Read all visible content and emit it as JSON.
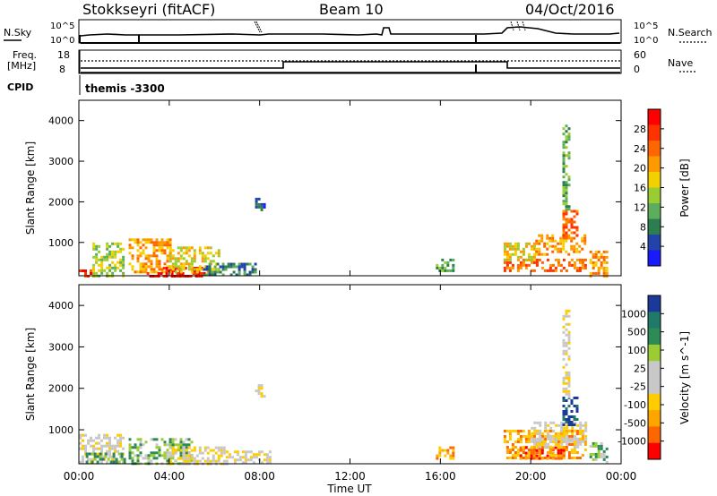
{
  "header": {
    "site": "Stokkseyri (fitACF)",
    "beam": "Beam 10",
    "date": "04/Oct/2016"
  },
  "top_strip": {
    "left_label": "N.Sky",
    "right_label": "N.Search",
    "left_ticks": [
      "10^5",
      "10^0"
    ],
    "right_ticks": [
      "10^5",
      "10^0"
    ]
  },
  "freq_strip": {
    "left_label_1": "Freq.",
    "left_label_2": "[MHz]",
    "left_ticks": [
      "18",
      "8"
    ],
    "right_label": "Nave",
    "right_ticks": [
      "60",
      "0"
    ],
    "cpid_label": "CPID",
    "cpid_text": "themis -3300"
  },
  "colors": {
    "power": [
      "#1a1aff",
      "#2244aa",
      "#2e7d4f",
      "#5cae5c",
      "#9acd32",
      "#f5d000",
      "#ff9900",
      "#ff6600",
      "#ff3300",
      "#ff0000"
    ],
    "velocity": [
      "#ff0000",
      "#ff6600",
      "#ffa500",
      "#ffcc00",
      "#c8c8c8",
      "#c8c8c8",
      "#9acd32",
      "#2e8b57",
      "#1f7a6a",
      "#1a3a9a"
    ]
  },
  "chart_data": [
    {
      "type": "heatmap",
      "name": "power",
      "ylabel": "Slant Range [km]",
      "xlim": [
        0,
        24
      ],
      "ylim": [
        180,
        4500
      ],
      "yticks": [
        "1000",
        "2000",
        "3000",
        "4000"
      ],
      "colorbar": {
        "label": "Power [dB]",
        "ticks": [
          "4",
          "8",
          "12",
          "16",
          "20",
          "24",
          "28"
        ],
        "range": [
          0,
          30
        ]
      },
      "regions": [
        {
          "t0": 0.0,
          "t1": 0.6,
          "r0": 200,
          "r1": 400,
          "level": 8
        },
        {
          "t0": 0.6,
          "t1": 2.0,
          "r0": 200,
          "r1": 1000,
          "level": 4
        },
        {
          "t0": 2.2,
          "t1": 4.0,
          "r0": 250,
          "r1": 1100,
          "level": 6
        },
        {
          "t0": 3.0,
          "t1": 5.5,
          "r0": 200,
          "r1": 400,
          "level": 9
        },
        {
          "t0": 4.0,
          "t1": 6.2,
          "r0": 300,
          "r1": 900,
          "level": 5
        },
        {
          "t0": 5.5,
          "t1": 7.8,
          "r0": 200,
          "r1": 500,
          "level": 2
        },
        {
          "t0": 7.8,
          "t1": 8.2,
          "r0": 1800,
          "r1": 2100,
          "level": 1
        },
        {
          "t0": 15.8,
          "t1": 16.6,
          "r0": 300,
          "r1": 600,
          "level": 3
        },
        {
          "t0": 18.8,
          "t1": 22.4,
          "r0": 300,
          "r1": 600,
          "level": 7
        },
        {
          "t0": 18.8,
          "t1": 20.2,
          "r0": 600,
          "r1": 1000,
          "level": 5
        },
        {
          "t0": 20.2,
          "t1": 22.4,
          "r0": 700,
          "r1": 1200,
          "level": 6
        },
        {
          "t0": 21.4,
          "t1": 22.1,
          "r0": 1100,
          "r1": 1800,
          "level": 7
        },
        {
          "t0": 21.4,
          "t1": 21.7,
          "r0": 1800,
          "r1": 3900,
          "level": 3
        },
        {
          "t0": 22.6,
          "t1": 23.4,
          "r0": 200,
          "r1": 800,
          "level": 6
        }
      ]
    },
    {
      "type": "heatmap",
      "name": "velocity",
      "ylabel": "Slant Range [km]",
      "xlabel": "Time UT",
      "xticks": [
        "00:00",
        "04:00",
        "08:00",
        "12:00",
        "16:00",
        "20:00",
        "00:00"
      ],
      "xlim": [
        0,
        24
      ],
      "ylim": [
        180,
        4500
      ],
      "yticks": [
        "1000",
        "2000",
        "3000",
        "4000"
      ],
      "colorbar": {
        "label": "Velocity [m s^-1]",
        "ticks": [
          "1000",
          "500",
          "100",
          "25",
          "-25",
          "-100",
          "-500",
          "-1000"
        ],
        "range": [
          -1000,
          1000
        ]
      },
      "regions": [
        {
          "t0": 0.0,
          "t1": 2.0,
          "r0": 200,
          "r1": 900,
          "level": 4
        },
        {
          "t0": 0.3,
          "t1": 2.0,
          "r0": 200,
          "r1": 450,
          "level": 7
        },
        {
          "t0": 2.2,
          "t1": 5.0,
          "r0": 200,
          "r1": 800,
          "level": 6
        },
        {
          "t0": 4.0,
          "t1": 6.5,
          "r0": 200,
          "r1": 600,
          "level": 4
        },
        {
          "t0": 6.5,
          "t1": 8.5,
          "r0": 200,
          "r1": 500,
          "level": 4
        },
        {
          "t0": 7.8,
          "t1": 8.2,
          "r0": 1800,
          "r1": 2100,
          "level": 4
        },
        {
          "t0": 15.8,
          "t1": 16.6,
          "r0": 300,
          "r1": 600,
          "level": 2
        },
        {
          "t0": 18.8,
          "t1": 22.4,
          "r0": 300,
          "r1": 1000,
          "level": 2
        },
        {
          "t0": 19.5,
          "t1": 21.5,
          "r0": 300,
          "r1": 600,
          "level": 1
        },
        {
          "t0": 20.0,
          "t1": 22.4,
          "r0": 600,
          "r1": 1200,
          "level": 4
        },
        {
          "t0": 21.4,
          "t1": 22.1,
          "r0": 1100,
          "r1": 1800,
          "level": 9
        },
        {
          "t0": 21.4,
          "t1": 21.7,
          "r0": 1800,
          "r1": 3900,
          "level": 4
        },
        {
          "t0": 22.6,
          "t1": 23.4,
          "r0": 200,
          "r1": 700,
          "level": 6
        }
      ]
    }
  ]
}
